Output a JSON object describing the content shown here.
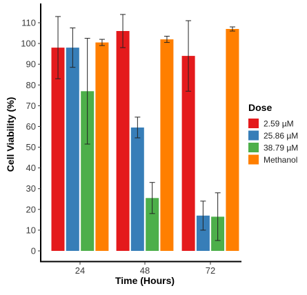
{
  "chart_data": {
    "type": "bar",
    "title": "",
    "xlabel": "Time (Hours)",
    "ylabel": "Cell Viability (%)",
    "ylim": [
      0,
      115
    ],
    "yticks": [
      0,
      10,
      20,
      30,
      40,
      50,
      60,
      70,
      80,
      90,
      100,
      110
    ],
    "grid": false,
    "legend_position": "right",
    "legend_title": "Dose",
    "categories": [
      "24",
      "48",
      "72"
    ],
    "series": [
      {
        "name": "2.59 µM",
        "color": "#e41a1c",
        "values": [
          98,
          106,
          94
        ],
        "errors": [
          15,
          8,
          17
        ]
      },
      {
        "name": "25.86 µM",
        "color": "#377eb8",
        "values": [
          98,
          59.5,
          17
        ],
        "errors": [
          9.5,
          5,
          7
        ]
      },
      {
        "name": "38.79 µM",
        "color": "#4daf4a",
        "values": [
          77,
          25.5,
          16.5
        ],
        "errors": [
          25.5,
          7.5,
          11.5
        ]
      },
      {
        "name": "Methanol",
        "color": "#ff7f00",
        "values": [
          100.5,
          102,
          107
        ],
        "errors": [
          1.5,
          1.5,
          1
        ]
      }
    ]
  }
}
